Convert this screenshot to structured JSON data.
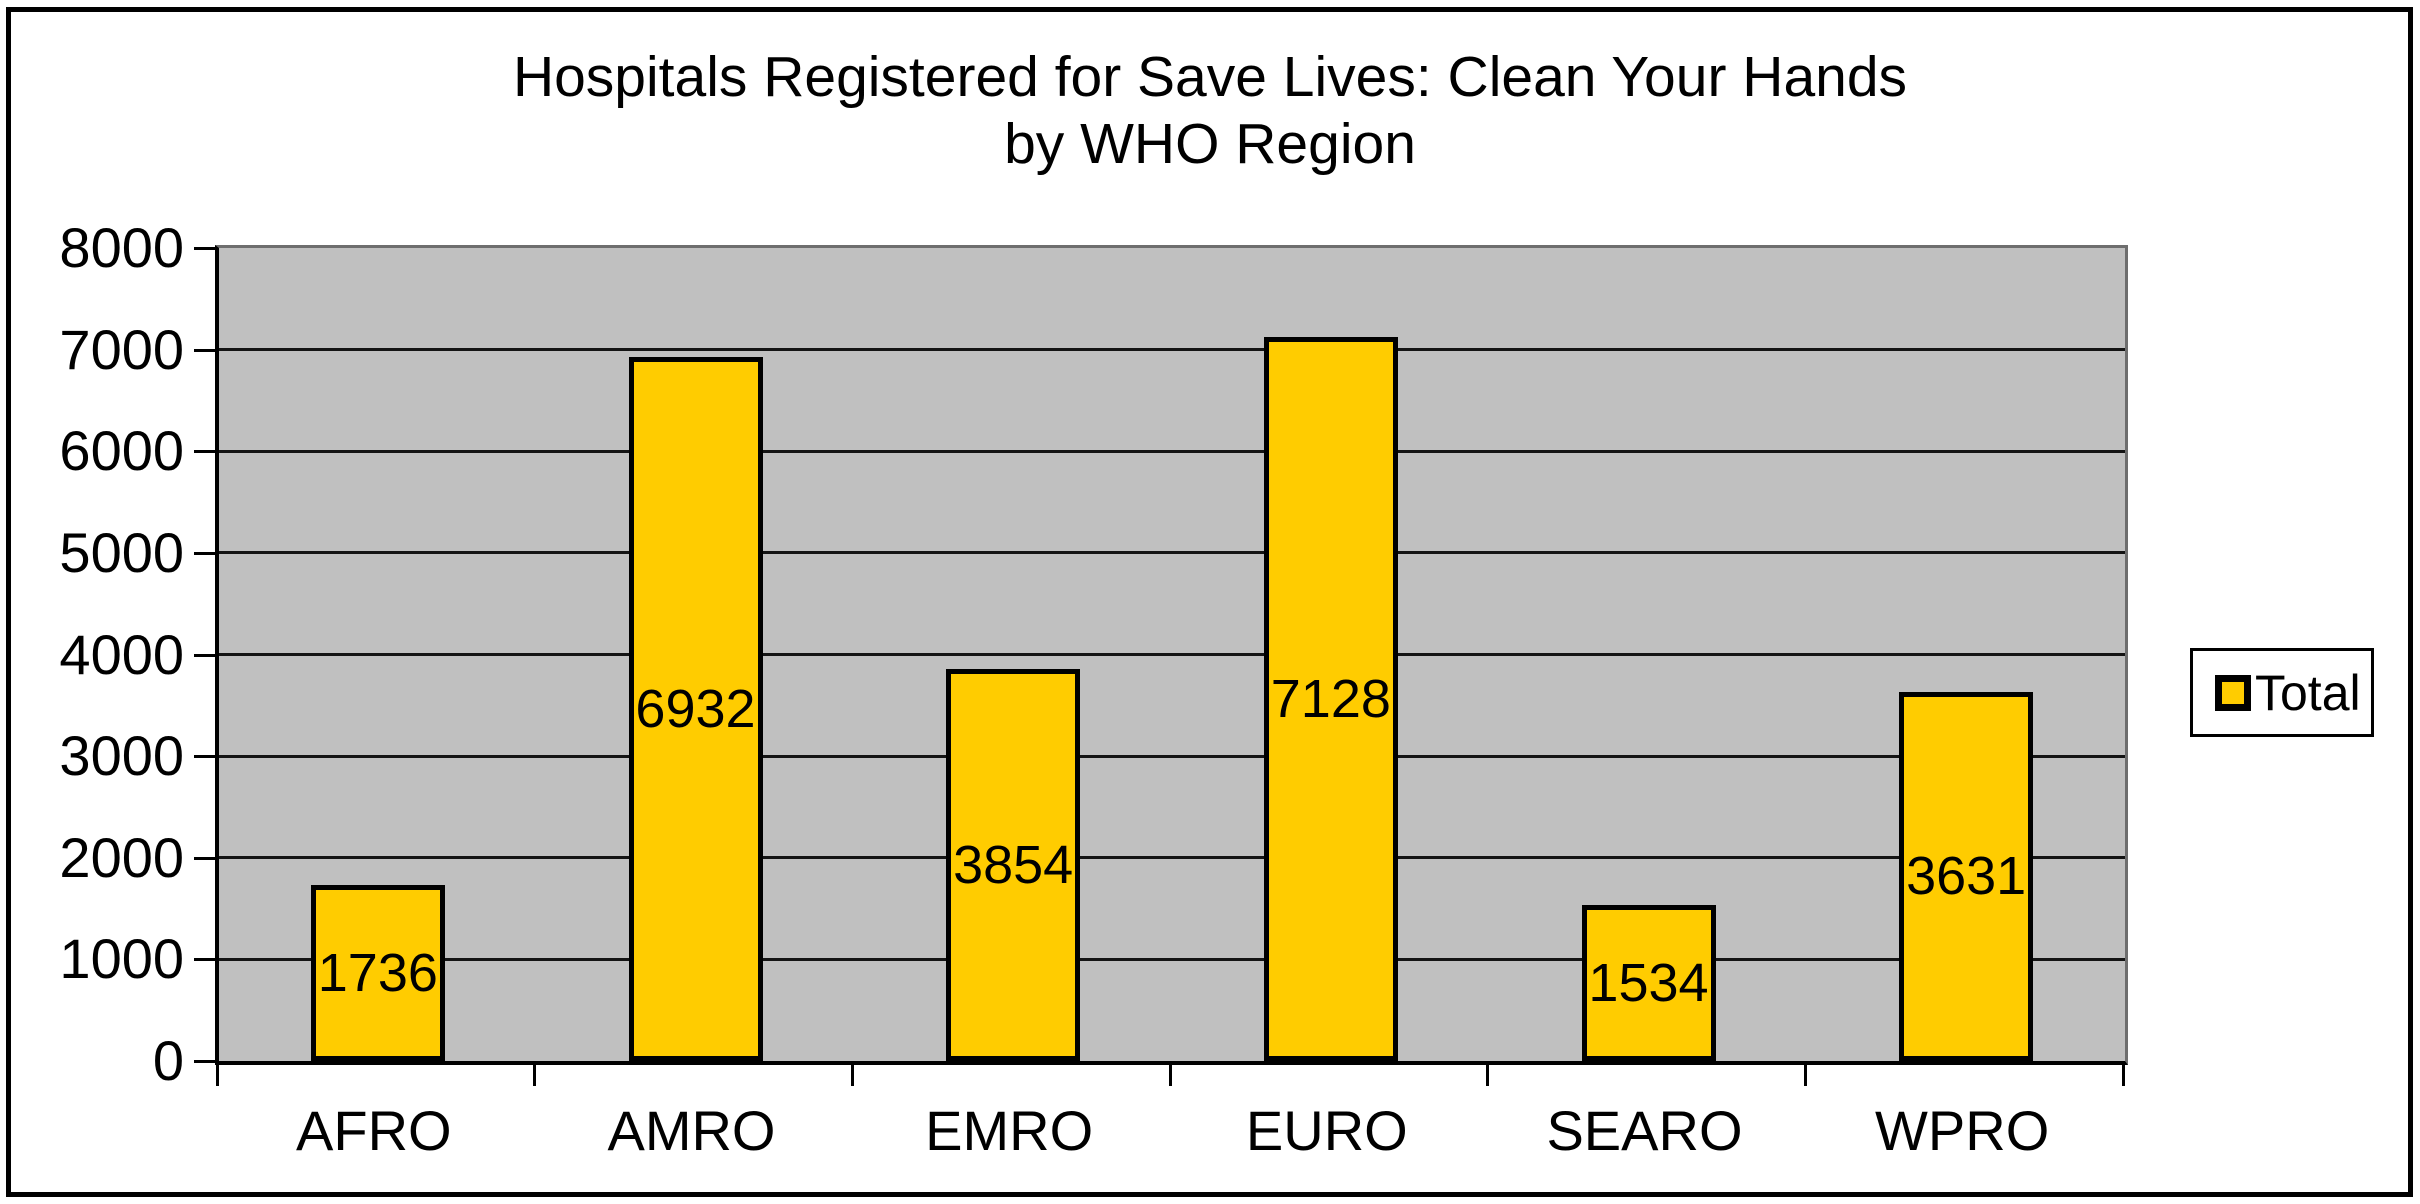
{
  "title": {
    "line1": "Hospitals Registered for Save Lives: Clean Your Hands",
    "line2": "by WHO Region"
  },
  "legend": {
    "label": "Total"
  },
  "chart_data": {
    "type": "bar",
    "title": "Hospitals Registered for Save Lives: Clean Your Hands by WHO Region",
    "categories": [
      "AFRO",
      "AMRO",
      "EMRO",
      "EURO",
      "SEARO",
      "WPRO"
    ],
    "series": [
      {
        "name": "Total",
        "values": [
          1736,
          6932,
          3854,
          7128,
          1534,
          3631
        ]
      }
    ],
    "xlabel": "",
    "ylabel": "",
    "ylim": [
      0,
      8000
    ],
    "ytick_step": 1000,
    "ytick_labels": [
      "0",
      "1000",
      "2000",
      "3000",
      "4000",
      "5000",
      "6000",
      "7000",
      "8000"
    ],
    "grid": "horizontal, every 1000",
    "legend_position": "right-middle",
    "data_labels": "inside-center",
    "colors": {
      "bar_fill": "#FFCC00",
      "bar_border": "#000000",
      "plot_background": "#C0C0C0",
      "gridline": "#141414",
      "text": "#000000",
      "background": "#FFFFFF"
    }
  }
}
